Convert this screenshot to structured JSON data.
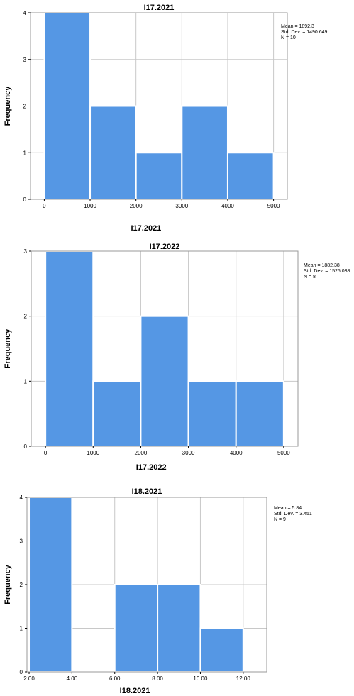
{
  "chart_data": [
    {
      "type": "bar",
      "title": "I17.2021",
      "xlabel": "I17.2021",
      "ylabel": "Frequency",
      "bins": [
        [
          0,
          1000
        ],
        [
          1000,
          2000
        ],
        [
          2000,
          3000
        ],
        [
          3000,
          4000
        ],
        [
          4000,
          5000
        ]
      ],
      "values": [
        4,
        2,
        1,
        2,
        1
      ],
      "x_ticks": [
        "0",
        "1000",
        "2000",
        "3000",
        "4000",
        "5000"
      ],
      "x_tick_values": [
        0,
        1000,
        2000,
        3000,
        4000,
        5000
      ],
      "y_ticks": [
        "0",
        "1",
        "2",
        "3",
        "4"
      ],
      "xlim": [
        -300,
        5300
      ],
      "ylim": [
        0,
        4
      ],
      "grid": true,
      "stats": [
        "Mean = 1892.3",
        "Std. Dev. = 1490.649",
        "N = 10"
      ],
      "color": "#5597e4"
    },
    {
      "type": "bar",
      "title": "I17.2022",
      "xlabel": "I17.2022",
      "ylabel": "Frequency",
      "bins": [
        [
          0,
          1000
        ],
        [
          1000,
          2000
        ],
        [
          2000,
          3000
        ],
        [
          3000,
          4000
        ],
        [
          4000,
          5000
        ]
      ],
      "values": [
        3,
        1,
        2,
        1,
        1
      ],
      "x_ticks": [
        "0",
        "1000",
        "2000",
        "3000",
        "4000",
        "5000"
      ],
      "x_tick_values": [
        0,
        1000,
        2000,
        3000,
        4000,
        5000
      ],
      "y_ticks": [
        "0",
        "1",
        "2",
        "3"
      ],
      "xlim": [
        -300,
        5300
      ],
      "ylim": [
        0,
        3
      ],
      "grid": true,
      "stats": [
        "Mean = 1882.38",
        "Std. Dev. = 1525.038",
        "N = 8"
      ],
      "color": "#5597e4"
    },
    {
      "type": "bar",
      "title": "I18.2021",
      "xlabel": "I18.2021",
      "ylabel": "Frequency",
      "bins": [
        [
          2,
          4
        ],
        [
          4,
          6
        ],
        [
          6,
          8
        ],
        [
          8,
          10
        ],
        [
          10,
          12
        ]
      ],
      "values": [
        4,
        0,
        2,
        2,
        1
      ],
      "x_ticks": [
        "2.00",
        "4.00",
        "6.00",
        "8.00",
        "10.00",
        "12.00"
      ],
      "x_tick_values": [
        2,
        4,
        6,
        8,
        10,
        12
      ],
      "y_ticks": [
        "0",
        "1",
        "2",
        "3",
        "4"
      ],
      "xlim": [
        1.9,
        13.1
      ],
      "ylim": [
        0,
        4
      ],
      "grid": true,
      "stats": [
        "Mean = 5.84",
        "Std. Dev. = 3.451",
        "N = 9"
      ],
      "color": "#5597e4"
    }
  ]
}
